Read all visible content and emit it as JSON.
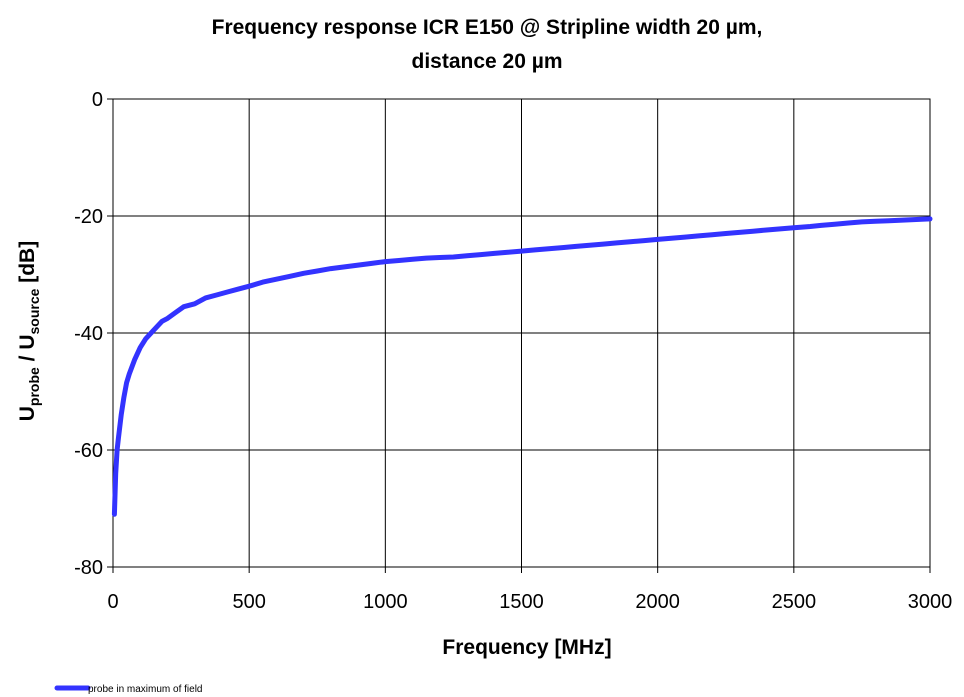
{
  "chart_data": {
    "type": "line",
    "title_line1": "Frequency response ICR E150 @ Stripline width 20 µm,",
    "title_line2": "distance 20 µm",
    "xlabel": "Frequency [MHz]",
    "ylabel": {
      "main1": "U",
      "sub1": "probe",
      "main2": " / U",
      "sub2": "source",
      "unit": " [dB]"
    },
    "xlim": [
      0,
      3000
    ],
    "ylim": [
      -80,
      0
    ],
    "x_ticks": [
      0,
      500,
      1000,
      1500,
      2000,
      2500,
      3000
    ],
    "x_tick_labels": [
      "0",
      "500",
      "1000",
      "1500",
      "2000",
      "2500",
      "3000"
    ],
    "y_ticks": [
      0,
      -20,
      -40,
      -60,
      -80
    ],
    "y_tick_labels": [
      "0",
      "-20",
      "-40",
      "-60",
      "-80"
    ],
    "grid": true,
    "legend_placement": "bottom-left",
    "series": [
      {
        "name": "probe in maximum of field",
        "color": "#3333ff",
        "x": [
          5,
          10,
          15,
          20,
          30,
          40,
          50,
          60,
          80,
          100,
          120,
          150,
          180,
          200,
          230,
          260,
          300,
          340,
          380,
          420,
          460,
          500,
          550,
          600,
          650,
          700,
          750,
          800,
          850,
          900,
          950,
          1000,
          1050,
          1100,
          1150,
          1200,
          1250,
          1300,
          1350,
          1400,
          1450,
          1500,
          1550,
          1600,
          1650,
          1700,
          1750,
          1800,
          1850,
          1900,
          1950,
          2000,
          2050,
          2100,
          2150,
          2200,
          2250,
          2300,
          2350,
          2400,
          2450,
          2500,
          2530,
          2560,
          2600,
          2650,
          2700,
          2750,
          2800,
          2850,
          2900,
          2950,
          3000
        ],
        "y": [
          -71,
          -64,
          -60,
          -58,
          -54,
          -51,
          -48.5,
          -47,
          -44.5,
          -42.5,
          -41,
          -39.5,
          -38,
          -37.5,
          -36.5,
          -35.5,
          -35,
          -34,
          -33.5,
          -33,
          -32.5,
          -32,
          -31.3,
          -30.8,
          -30.3,
          -29.8,
          -29.4,
          -29,
          -28.7,
          -28.4,
          -28.1,
          -27.8,
          -27.6,
          -27.4,
          -27.2,
          -27.1,
          -27,
          -26.8,
          -26.6,
          -26.4,
          -26.2,
          -26,
          -25.8,
          -25.6,
          -25.4,
          -25.2,
          -25,
          -24.8,
          -24.6,
          -24.4,
          -24.2,
          -24,
          -23.8,
          -23.6,
          -23.4,
          -23.2,
          -23,
          -22.8,
          -22.6,
          -22.4,
          -22.2,
          -22,
          -21.9,
          -21.8,
          -21.6,
          -21.4,
          -21.2,
          -21,
          -20.9,
          -20.8,
          -20.7,
          -20.6,
          -20.5
        ]
      }
    ]
  }
}
